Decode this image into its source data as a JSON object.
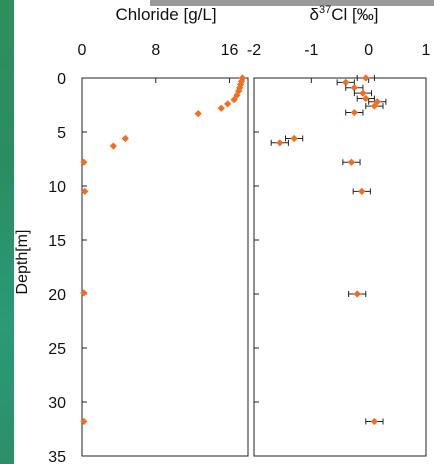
{
  "chart_data": [
    {
      "type": "scatter",
      "title": "",
      "xlabel": "Chloride [g/L]",
      "ylabel": "Depth[m]",
      "xlim": [
        0,
        18
      ],
      "ylim": [
        35,
        0
      ],
      "x_ticks": [
        "0",
        "8",
        "16"
      ],
      "x_tick_values": [
        0,
        8,
        16
      ],
      "y_ticks": [
        "0",
        "5",
        "10",
        "15",
        "20",
        "25",
        "30",
        "35"
      ],
      "y_tick_values": [
        0,
        5,
        10,
        15,
        20,
        25,
        30,
        35
      ],
      "grid": false,
      "marker_color": "#f36c1f",
      "points": [
        {
          "x": 17.4,
          "y": 0.0
        },
        {
          "x": 17.3,
          "y": 0.3
        },
        {
          "x": 17.2,
          "y": 0.6
        },
        {
          "x": 17.1,
          "y": 0.9
        },
        {
          "x": 17.0,
          "y": 1.2
        },
        {
          "x": 16.8,
          "y": 1.6
        },
        {
          "x": 16.5,
          "y": 2.0
        },
        {
          "x": 15.8,
          "y": 2.4
        },
        {
          "x": 15.1,
          "y": 2.8
        },
        {
          "x": 12.6,
          "y": 3.3
        },
        {
          "x": 4.7,
          "y": 5.6
        },
        {
          "x": 3.4,
          "y": 6.3
        },
        {
          "x": 0.2,
          "y": 7.8
        },
        {
          "x": 0.3,
          "y": 10.5
        },
        {
          "x": 0.2,
          "y": 19.9
        },
        {
          "x": 0.2,
          "y": 31.8
        }
      ]
    },
    {
      "type": "scatter",
      "title": "",
      "xlabel": "δ37Cl [‰]",
      "ylabel": "",
      "xlim": [
        -2,
        1
      ],
      "ylim": [
        35,
        0
      ],
      "x_ticks": [
        "-2",
        "-1",
        "0",
        "1"
      ],
      "x_tick_values": [
        -2,
        -1,
        0,
        1
      ],
      "grid": false,
      "marker_color": "#f36c1f",
      "points": [
        {
          "x": -0.05,
          "y": 0.0,
          "err": 0.15
        },
        {
          "x": -0.4,
          "y": 0.4,
          "err": 0.15
        },
        {
          "x": -0.25,
          "y": 0.9,
          "err": 0.15
        },
        {
          "x": -0.1,
          "y": 1.4,
          "err": 0.15
        },
        {
          "x": -0.05,
          "y": 1.9,
          "err": 0.15
        },
        {
          "x": 0.15,
          "y": 2.2,
          "err": 0.15
        },
        {
          "x": 0.1,
          "y": 2.6,
          "err": 0.15
        },
        {
          "x": -0.25,
          "y": 3.2,
          "err": 0.15
        },
        {
          "x": -1.3,
          "y": 5.6,
          "err": 0.15
        },
        {
          "x": -1.55,
          "y": 6.0,
          "err": 0.15
        },
        {
          "x": -0.3,
          "y": 7.8,
          "err": 0.15
        },
        {
          "x": -0.12,
          "y": 10.5,
          "err": 0.15
        },
        {
          "x": -0.2,
          "y": 20.0,
          "err": 0.15
        },
        {
          "x": 0.1,
          "y": 31.8,
          "err": 0.15
        }
      ]
    }
  ]
}
